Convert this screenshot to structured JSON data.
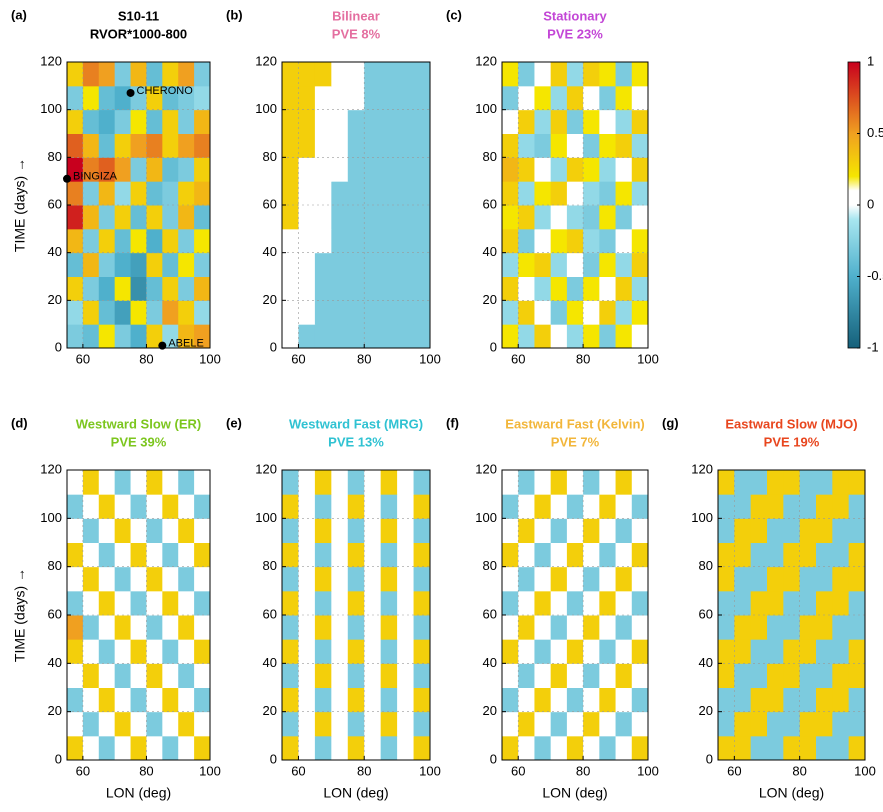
{
  "chart_data": [
    {
      "type": "heatmap",
      "label": "(a)",
      "title": "S10-11",
      "subtitle": "RVOR*1000-800",
      "title_color": "#000000",
      "ylabel": "TIME (days) →",
      "xlim": [
        55,
        100
      ],
      "ylim": [
        0,
        120
      ],
      "xticks": [
        60,
        80,
        100
      ],
      "yticks": [
        0,
        20,
        40,
        60,
        80,
        100,
        120
      ],
      "grid": true,
      "x": [
        57.5,
        62.5,
        67.5,
        72.5,
        77.5,
        82.5,
        87.5,
        92.5,
        97.5
      ],
      "y": [
        5,
        15,
        25,
        35,
        45,
        55,
        65,
        75,
        85,
        95,
        105,
        115
      ],
      "z": [
        [
          -0.3,
          -0.4,
          0.2,
          -0.3,
          -0.5,
          0.3,
          -0.2,
          0.4,
          0.5
        ],
        [
          -0.2,
          0.3,
          -0.4,
          -0.6,
          0.2,
          -0.3,
          0.5,
          0.3,
          -0.2
        ],
        [
          0.3,
          -0.3,
          -0.5,
          0.2,
          -0.7,
          -0.4,
          0.3,
          -0.3,
          0.4
        ],
        [
          -0.4,
          0.4,
          -0.3,
          -0.5,
          -0.6,
          0.3,
          -0.4,
          0.2,
          -0.3
        ],
        [
          0.4,
          -0.3,
          0.3,
          -0.4,
          0.2,
          -0.5,
          0.3,
          -0.3,
          0.2
        ],
        [
          0.9,
          0.4,
          -0.3,
          0.3,
          -0.4,
          0.3,
          -0.3,
          0.4,
          -0.4
        ],
        [
          0.6,
          -0.3,
          0.4,
          -0.2,
          0.3,
          -0.4,
          -0.3,
          0.3,
          0.4
        ],
        [
          1.0,
          0.6,
          0.7,
          0.5,
          -0.3,
          0.4,
          -0.4,
          -0.3,
          0.3
        ],
        [
          0.7,
          0.4,
          -0.4,
          0.3,
          0.5,
          0.6,
          0.3,
          0.5,
          0.6
        ],
        [
          0.3,
          -0.4,
          -0.5,
          -0.3,
          0.2,
          -0.4,
          0.3,
          -0.3,
          0.4
        ],
        [
          -0.3,
          0.2,
          -0.4,
          -0.5,
          -0.3,
          0.3,
          -0.4,
          -0.3,
          -0.2
        ],
        [
          0.3,
          0.6,
          0.5,
          -0.3,
          0.4,
          -0.4,
          0.3,
          0.5,
          -0.3
        ]
      ],
      "annotations": [
        {
          "text": "CHERONO",
          "x": 75,
          "y": 107
        },
        {
          "text": "BINGIZA",
          "x": 55,
          "y": 71
        },
        {
          "text": "ABELE",
          "x": 85,
          "y": 1
        }
      ]
    },
    {
      "type": "heatmap",
      "label": "(b)",
      "title": "Bilinear",
      "subtitle": "PVE 8%",
      "title_color": "#e46fa0",
      "xlim": [
        55,
        100
      ],
      "ylim": [
        0,
        120
      ],
      "xticks": [
        60,
        80,
        100
      ],
      "yticks": [
        0,
        20,
        40,
        60,
        80,
        100,
        120
      ],
      "grid": true,
      "x": [
        57.5,
        62.5,
        67.5,
        72.5,
        77.5,
        82.5,
        87.5,
        92.5,
        97.5
      ],
      "y": [
        5,
        15,
        25,
        35,
        45,
        55,
        65,
        75,
        85,
        95,
        105,
        115
      ],
      "z": [
        [
          0,
          -0.3,
          -0.3,
          -0.3,
          -0.3,
          -0.3,
          -0.3,
          -0.3,
          -0.3
        ],
        [
          0,
          0,
          -0.3,
          -0.3,
          -0.3,
          -0.3,
          -0.3,
          -0.3,
          -0.3
        ],
        [
          0,
          0,
          -0.3,
          -0.3,
          -0.3,
          -0.3,
          -0.3,
          -0.3,
          -0.3
        ],
        [
          0,
          0,
          -0.3,
          -0.3,
          -0.3,
          -0.3,
          -0.3,
          -0.3,
          -0.3
        ],
        [
          0,
          0,
          0,
          -0.3,
          -0.3,
          -0.3,
          -0.3,
          -0.3,
          -0.3
        ],
        [
          0.3,
          0,
          0,
          -0.3,
          -0.3,
          -0.3,
          -0.3,
          -0.3,
          -0.3
        ],
        [
          0.3,
          0,
          0,
          -0.3,
          -0.3,
          -0.3,
          -0.3,
          -0.3,
          -0.3
        ],
        [
          0.3,
          0,
          0,
          0,
          -0.3,
          -0.3,
          -0.3,
          -0.3,
          -0.3
        ],
        [
          0.3,
          0.3,
          0,
          0,
          -0.3,
          -0.3,
          -0.3,
          -0.3,
          -0.3
        ],
        [
          0.3,
          0.3,
          0,
          0,
          -0.3,
          -0.3,
          -0.3,
          -0.3,
          -0.3
        ],
        [
          0.3,
          0.3,
          0,
          0,
          0,
          -0.3,
          -0.3,
          -0.3,
          -0.3
        ],
        [
          0.3,
          0.3,
          0.3,
          0,
          0,
          -0.3,
          -0.3,
          -0.3,
          -0.3
        ]
      ]
    },
    {
      "type": "heatmap",
      "label": "(c)",
      "title": "Stationary",
      "subtitle": "PVE 23%",
      "title_color": "#c346d6",
      "xlim": [
        55,
        100
      ],
      "ylim": [
        0,
        120
      ],
      "xticks": [
        60,
        80,
        100
      ],
      "yticks": [
        0,
        20,
        40,
        60,
        80,
        100,
        120
      ],
      "grid": true,
      "x": [
        57.5,
        62.5,
        67.5,
        72.5,
        77.5,
        82.5,
        87.5,
        92.5,
        97.5
      ],
      "y": [
        5,
        15,
        25,
        35,
        45,
        55,
        65,
        75,
        85,
        95,
        105,
        115
      ],
      "z": [
        [
          0.2,
          -0.2,
          0.3,
          0,
          -0.2,
          0.2,
          -0.3,
          0.2,
          0
        ],
        [
          -0.2,
          0.3,
          0,
          -0.3,
          0.2,
          0,
          0.3,
          -0.2,
          0.2
        ],
        [
          0.3,
          0,
          -0.2,
          0.2,
          -0.3,
          0.2,
          0,
          0.3,
          -0.2
        ],
        [
          -0.2,
          0.2,
          0.3,
          -0.2,
          0,
          -0.3,
          0.2,
          -0.2,
          0.3
        ],
        [
          0.3,
          -0.3,
          0,
          0.2,
          0.3,
          -0.2,
          -0.3,
          0,
          0.2
        ],
        [
          0.2,
          0.3,
          -0.2,
          0,
          -0.2,
          -0.3,
          0.2,
          -0.3,
          0
        ],
        [
          0.3,
          -0.2,
          0.2,
          0.3,
          0,
          -0.2,
          -0.3,
          0.2,
          -0.2
        ],
        [
          0.4,
          0.3,
          0,
          -0.2,
          0.3,
          0.2,
          -0.2,
          0,
          0.3
        ],
        [
          0.3,
          -0.2,
          -0.3,
          0.2,
          0,
          -0.3,
          0.2,
          0.3,
          -0.2
        ],
        [
          0,
          0.3,
          -0.2,
          0.3,
          -0.3,
          0.2,
          0,
          -0.2,
          0.3
        ],
        [
          -0.3,
          0,
          0.2,
          -0.2,
          0.3,
          0,
          -0.3,
          0.2,
          0
        ],
        [
          0.2,
          -0.3,
          0,
          0.3,
          -0.2,
          0.3,
          0.2,
          -0.3,
          0.2
        ]
      ]
    },
    {
      "type": "heatmap",
      "label": "(d)",
      "title": "Westward Slow (ER)",
      "subtitle": "PVE 39%",
      "title_color": "#7cc61e",
      "ylabel": "TIME (days) →",
      "xlabel": "LON (deg)",
      "xlim": [
        55,
        100
      ],
      "ylim": [
        0,
        120
      ],
      "xticks": [
        60,
        80,
        100
      ],
      "yticks": [
        0,
        20,
        40,
        60,
        80,
        100,
        120
      ],
      "grid": true,
      "x": [
        57.5,
        62.5,
        67.5,
        72.5,
        77.5,
        82.5,
        87.5,
        92.5,
        97.5
      ],
      "y": [
        5,
        15,
        25,
        35,
        45,
        55,
        65,
        75,
        85,
        95,
        105,
        115
      ],
      "z": [
        [
          0.3,
          0,
          -0.3,
          0,
          0.3,
          0,
          -0.3,
          0,
          0.3
        ],
        [
          0,
          -0.3,
          0,
          0.3,
          0,
          -0.3,
          0,
          0.3,
          0
        ],
        [
          -0.3,
          0,
          0.3,
          0,
          -0.3,
          0,
          0.3,
          0,
          -0.3
        ],
        [
          0,
          0.3,
          0,
          -0.3,
          0,
          0.3,
          0,
          -0.3,
          0
        ],
        [
          0.3,
          0,
          -0.3,
          0,
          0.3,
          0,
          -0.3,
          0,
          0.3
        ],
        [
          0.5,
          -0.3,
          0,
          0.3,
          0,
          -0.3,
          0,
          0.3,
          0
        ],
        [
          -0.3,
          0,
          0.3,
          0,
          -0.3,
          0,
          0.3,
          0,
          -0.3
        ],
        [
          0,
          0.3,
          0,
          -0.3,
          0,
          0.3,
          0,
          -0.3,
          0
        ],
        [
          0.3,
          0,
          -0.3,
          0,
          0.3,
          0,
          -0.3,
          0,
          0.3
        ],
        [
          0,
          -0.3,
          0,
          0.3,
          0,
          -0.3,
          0,
          0.3,
          0
        ],
        [
          -0.3,
          0,
          0.3,
          0,
          -0.3,
          0,
          0.3,
          0,
          -0.3
        ],
        [
          0,
          0.3,
          0,
          -0.3,
          0,
          0.3,
          0,
          -0.3,
          0
        ]
      ]
    },
    {
      "type": "heatmap",
      "label": "(e)",
      "title": "Westward Fast (MRG)",
      "subtitle": "PVE 13%",
      "title_color": "#2fc2d2",
      "xlabel": "LON (deg)",
      "xlim": [
        55,
        100
      ],
      "ylim": [
        0,
        120
      ],
      "xticks": [
        60,
        80,
        100
      ],
      "yticks": [
        0,
        20,
        40,
        60,
        80,
        100,
        120
      ],
      "grid": true,
      "x": [
        57.5,
        62.5,
        67.5,
        72.5,
        77.5,
        82.5,
        87.5,
        92.5,
        97.5
      ],
      "y": [
        5,
        15,
        25,
        35,
        45,
        55,
        65,
        75,
        85,
        95,
        105,
        115
      ],
      "z": [
        [
          0.3,
          0,
          -0.3,
          0,
          0.3,
          0,
          -0.3,
          0,
          0.3
        ],
        [
          -0.3,
          0,
          0.3,
          0,
          -0.3,
          0,
          0.3,
          0,
          -0.3
        ],
        [
          0.3,
          0,
          -0.3,
          0,
          0.3,
          0,
          -0.3,
          0,
          0.3
        ],
        [
          -0.3,
          0,
          0.3,
          0,
          -0.3,
          0,
          0.3,
          0,
          -0.3
        ],
        [
          0.3,
          0,
          -0.3,
          0,
          0.3,
          0,
          -0.3,
          0,
          0.3
        ],
        [
          -0.3,
          0,
          0.3,
          0,
          -0.3,
          0,
          0.3,
          0,
          -0.3
        ],
        [
          0.3,
          0,
          -0.3,
          0,
          0.3,
          0,
          -0.3,
          0,
          0.3
        ],
        [
          -0.3,
          0,
          0.3,
          0,
          -0.3,
          0,
          0.3,
          0,
          -0.3
        ],
        [
          0.3,
          0,
          -0.3,
          0,
          0.3,
          0,
          -0.3,
          0,
          0.3
        ],
        [
          -0.3,
          0,
          0.3,
          0,
          -0.3,
          0,
          0.3,
          0,
          -0.3
        ],
        [
          0.3,
          0,
          -0.3,
          0,
          0.3,
          0,
          -0.3,
          0,
          0.3
        ],
        [
          -0.3,
          0,
          0.3,
          0,
          -0.3,
          0,
          0.3,
          0,
          -0.3
        ]
      ]
    },
    {
      "type": "heatmap",
      "label": "(f)",
      "title": "Eastward Fast (Kelvin)",
      "subtitle": "PVE 7%",
      "title_color": "#f2b63a",
      "xlabel": "LON (deg)",
      "xlim": [
        55,
        100
      ],
      "ylim": [
        0,
        120
      ],
      "xticks": [
        60,
        80,
        100
      ],
      "yticks": [
        0,
        20,
        40,
        60,
        80,
        100,
        120
      ],
      "grid": true,
      "x": [
        57.5,
        62.5,
        67.5,
        72.5,
        77.5,
        82.5,
        87.5,
        92.5,
        97.5
      ],
      "y": [
        5,
        15,
        25,
        35,
        45,
        55,
        65,
        75,
        85,
        95,
        105,
        115
      ],
      "z": [
        [
          0.3,
          0,
          -0.3,
          0,
          0.3,
          0,
          -0.3,
          0,
          0.3
        ],
        [
          0,
          0.3,
          0,
          -0.3,
          0,
          0.3,
          0,
          -0.3,
          0
        ],
        [
          -0.3,
          0,
          0.3,
          0,
          -0.3,
          0,
          0.3,
          0,
          -0.3
        ],
        [
          0,
          -0.3,
          0,
          0.3,
          0,
          -0.3,
          0,
          0.3,
          0
        ],
        [
          0.3,
          0,
          -0.3,
          0,
          0.3,
          0,
          -0.3,
          0,
          0.3
        ],
        [
          0,
          0.3,
          0,
          -0.3,
          0,
          0.3,
          0,
          -0.3,
          0
        ],
        [
          -0.3,
          0,
          0.3,
          0,
          -0.3,
          0,
          0.3,
          0,
          -0.3
        ],
        [
          0,
          -0.3,
          0,
          0.3,
          0,
          -0.3,
          0,
          0.3,
          0
        ],
        [
          0.3,
          0,
          -0.3,
          0,
          0.3,
          0,
          -0.3,
          0,
          0.3
        ],
        [
          0,
          0.3,
          0,
          -0.3,
          0,
          0.3,
          0,
          -0.3,
          0
        ],
        [
          -0.3,
          0,
          0.3,
          0,
          -0.3,
          0,
          0.3,
          0,
          -0.3
        ],
        [
          0,
          -0.3,
          0,
          0.3,
          0,
          -0.3,
          0,
          0.3,
          0
        ]
      ]
    },
    {
      "type": "heatmap",
      "label": "(g)",
      "title": "Eastward Slow (MJO)",
      "subtitle": "PVE 19%",
      "title_color": "#e8461e",
      "xlabel": "LON (deg)",
      "xlim": [
        55,
        100
      ],
      "ylim": [
        0,
        120
      ],
      "xticks": [
        60,
        80,
        100
      ],
      "yticks": [
        0,
        20,
        40,
        60,
        80,
        100,
        120
      ],
      "grid": true,
      "x": [
        57.5,
        62.5,
        67.5,
        72.5,
        77.5,
        82.5,
        87.5,
        92.5,
        97.5
      ],
      "y": [
        5,
        15,
        25,
        35,
        45,
        55,
        65,
        75,
        85,
        95,
        105,
        115
      ],
      "z": [
        [
          0.3,
          0.3,
          -0.3,
          -0.3,
          0.3,
          0.3,
          -0.3,
          -0.3,
          0.3
        ],
        [
          -0.3,
          0.3,
          0.3,
          -0.3,
          -0.3,
          0.3,
          0.3,
          -0.3,
          -0.3
        ],
        [
          -0.3,
          -0.3,
          0.3,
          0.3,
          -0.3,
          -0.3,
          0.3,
          0.3,
          -0.3
        ],
        [
          0.3,
          -0.3,
          -0.3,
          0.3,
          0.3,
          -0.3,
          -0.3,
          0.3,
          0.3
        ],
        [
          0.3,
          0.3,
          -0.3,
          -0.3,
          0.3,
          0.3,
          -0.3,
          -0.3,
          0.3
        ],
        [
          -0.3,
          0.3,
          0.3,
          -0.3,
          -0.3,
          0.3,
          0.3,
          -0.3,
          -0.3
        ],
        [
          -0.3,
          -0.3,
          0.3,
          0.3,
          -0.3,
          -0.3,
          0.3,
          0.3,
          -0.3
        ],
        [
          0.3,
          -0.3,
          -0.3,
          0.3,
          0.3,
          -0.3,
          -0.3,
          0.3,
          0.3
        ],
        [
          0.3,
          0.3,
          -0.3,
          -0.3,
          0.3,
          0.3,
          -0.3,
          -0.3,
          0.3
        ],
        [
          -0.3,
          0.3,
          0.3,
          -0.3,
          -0.3,
          0.3,
          0.3,
          -0.3,
          -0.3
        ],
        [
          -0.3,
          -0.3,
          0.3,
          0.3,
          -0.3,
          -0.3,
          0.3,
          0.3,
          -0.3
        ],
        [
          0.3,
          -0.3,
          -0.3,
          0.3,
          0.3,
          -0.3,
          -0.3,
          0.3,
          0.3
        ]
      ]
    },
    {
      "type": "colorbar",
      "clim": [
        -1,
        1
      ],
      "cticks": [
        1,
        0.5,
        0,
        -0.5,
        -1
      ],
      "colorscale": [
        [
          -1,
          "#15607a"
        ],
        [
          -0.5,
          "#4fb0cc"
        ],
        [
          -0.1,
          "#a8e6f0"
        ],
        [
          0,
          "#ffffff"
        ],
        [
          0.1,
          "#ffffff"
        ],
        [
          0.2,
          "#f5e600"
        ],
        [
          0.5,
          "#f0a020"
        ],
        [
          1,
          "#c8001e"
        ]
      ]
    }
  ]
}
